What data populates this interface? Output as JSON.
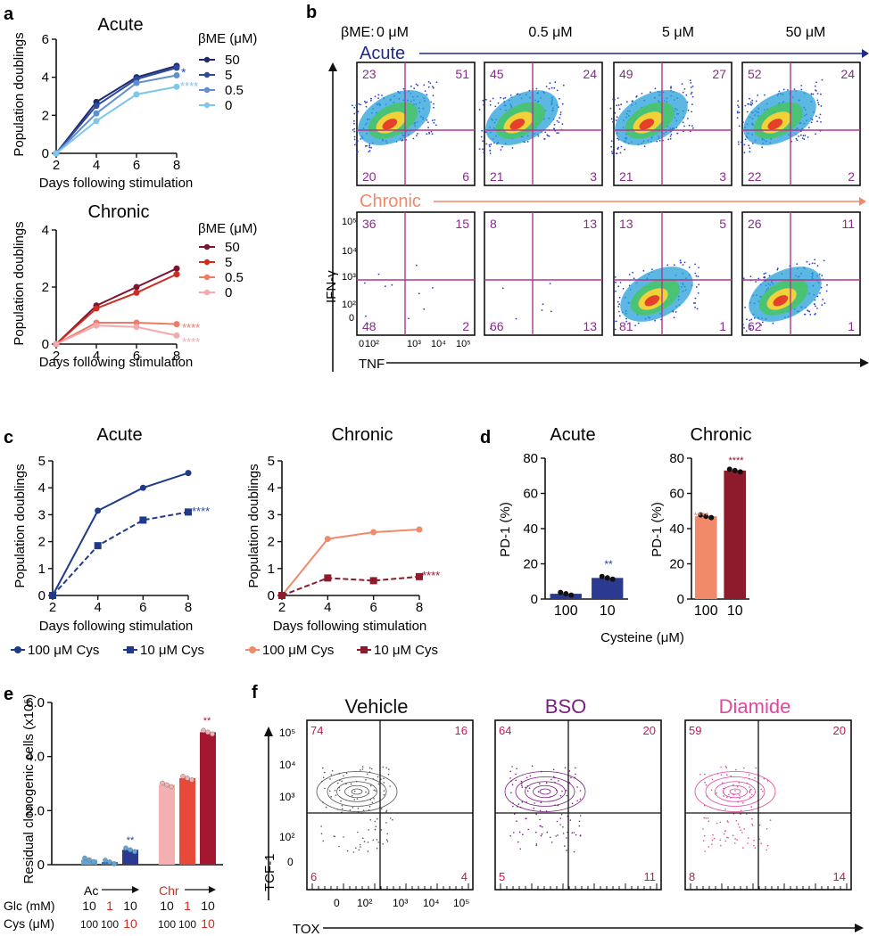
{
  "panels": {
    "a": "a",
    "b": "b",
    "c": "c",
    "d": "d",
    "e": "e",
    "f": "f"
  },
  "panel_a": {
    "acute_title": "Acute",
    "chronic_title": "Chronic",
    "ylabel": "Population doublings",
    "xlabel": "Days following stimulation",
    "legend_title": "βME (μM)",
    "legend_items": [
      "50",
      "5",
      "0.5",
      "0"
    ],
    "acute_colors": [
      "#1f2a6b",
      "#2b4aa0",
      "#5f8fd0",
      "#7fc6ea"
    ],
    "chronic_colors": [
      "#7b1530",
      "#d12a1f",
      "#ee7a6a",
      "#f5a9ae"
    ],
    "acute_sig": [
      "*",
      "****"
    ],
    "chronic_sig": [
      "****",
      "****"
    ]
  },
  "panel_b": {
    "header_label": "βME:",
    "concentrations": [
      "0 μM",
      "0.5 μM",
      "5 μM",
      "50 μM"
    ],
    "acute_label": "Acute",
    "chronic_label": "Chronic",
    "acute_color": "#1f2a8a",
    "chronic_color": "#f08a6a",
    "acute_quadrants": [
      [
        "23",
        "51",
        "20",
        "6"
      ],
      [
        "45",
        "24",
        "21",
        "3"
      ],
      [
        "49",
        "27",
        "21",
        "3"
      ],
      [
        "52",
        "24",
        "22",
        "2"
      ]
    ],
    "chronic_quadrants": [
      [
        "36",
        "15",
        "48",
        "2"
      ],
      [
        "8",
        "13",
        "66",
        "13"
      ],
      [
        "13",
        "5",
        "81",
        "1"
      ],
      [
        "26",
        "11",
        "62",
        "1"
      ]
    ],
    "y_axis_label": "IFN-γ",
    "x_axis_label": "TNF",
    "y_ticks": [
      "10⁵",
      "10⁴",
      "10³",
      "10²",
      "0"
    ],
    "x_ticks": [
      "0",
      "10²",
      "10³",
      "10⁴",
      "10⁵"
    ]
  },
  "panel_c": {
    "acute_title": "Acute",
    "chronic_title": "Chronic",
    "ylabel": "Population doublings",
    "xlabel": "Days following stimulation",
    "legend_acute": [
      "100 μM Cys",
      "10 μM Cys"
    ],
    "legend_chronic": [
      "100 μM Cys",
      "10 μM Cys"
    ],
    "sig": "****"
  },
  "panel_d": {
    "acute_title": "Acute",
    "chronic_title": "Chronic",
    "ylabel": "PD-1 (%)",
    "xlabel": "Cysteine (μM)",
    "categories": [
      "100",
      "10"
    ],
    "acute_sig": "**",
    "chronic_sig": "****"
  },
  "panel_e": {
    "ylabel": "Residual clonogenic cells (x10⁵)",
    "ac_label": "Ac",
    "chr_label": "Chr",
    "glc_label": "Glc (mM)",
    "cys_label": "Cys (μM)",
    "glc_values": [
      "10",
      "1",
      "10",
      "10",
      "1",
      "10"
    ],
    "cys_values": [
      "100",
      "100",
      "10",
      "100",
      "100",
      "10"
    ],
    "sig_ac": "**",
    "sig_chr": "**"
  },
  "panel_f": {
    "titles": [
      "Vehicle",
      "BSO",
      "Diamide"
    ],
    "title_colors": [
      "#111111",
      "#7a1f7e",
      "#e0479e"
    ],
    "quadrants": [
      [
        "74",
        "16",
        "6",
        "4"
      ],
      [
        "64",
        "20",
        "5",
        "11"
      ],
      [
        "59",
        "20",
        "8",
        "14"
      ]
    ],
    "y_axis_label": "TCF-1",
    "x_axis_label": "TOX",
    "y_ticks": [
      "10⁵",
      "10⁴",
      "10³",
      "10²",
      "0"
    ],
    "x_ticks": [
      "0",
      "10²",
      "10³",
      "10⁴",
      "10⁵"
    ]
  },
  "chart_data": [
    {
      "type": "line",
      "title": "Acute",
      "xlabel": "Days following stimulation",
      "ylabel": "Population doublings",
      "x": [
        2,
        4,
        6,
        8
      ],
      "xlim": [
        2,
        8
      ],
      "ylim": [
        0,
        6
      ],
      "yticks": [
        0,
        2,
        4,
        6
      ],
      "series": [
        {
          "name": "50",
          "values": [
            0,
            2.7,
            4.0,
            4.6
          ]
        },
        {
          "name": "5",
          "values": [
            0,
            2.5,
            3.9,
            4.5
          ]
        },
        {
          "name": "0.5",
          "values": [
            0,
            2.1,
            3.7,
            4.1
          ]
        },
        {
          "name": "0",
          "values": [
            0,
            1.7,
            3.1,
            3.5
          ]
        }
      ]
    },
    {
      "type": "line",
      "title": "Chronic",
      "xlabel": "Days following stimulation",
      "ylabel": "Population doublings",
      "x": [
        2,
        4,
        6,
        8
      ],
      "xlim": [
        2,
        8
      ],
      "ylim": [
        0,
        4
      ],
      "yticks": [
        0,
        2,
        4
      ],
      "series": [
        {
          "name": "50",
          "values": [
            0,
            1.35,
            2.0,
            2.65
          ]
        },
        {
          "name": "5",
          "values": [
            0,
            1.25,
            1.8,
            2.45
          ]
        },
        {
          "name": "0.5",
          "values": [
            0,
            0.75,
            0.75,
            0.7
          ]
        },
        {
          "name": "0",
          "values": [
            0,
            0.65,
            0.6,
            0.3
          ]
        }
      ]
    },
    {
      "type": "line",
      "title": "Acute",
      "xlabel": "Days following stimulation",
      "ylabel": "Population doublings",
      "x": [
        2,
        4,
        6,
        8
      ],
      "xlim": [
        2,
        8
      ],
      "ylim": [
        0,
        5
      ],
      "yticks": [
        0,
        1,
        2,
        3,
        4,
        5
      ],
      "series": [
        {
          "name": "100 μM Cys",
          "values": [
            0,
            3.15,
            4.0,
            4.55
          ]
        },
        {
          "name": "10 μM Cys",
          "values": [
            0,
            1.85,
            2.8,
            3.1
          ]
        }
      ]
    },
    {
      "type": "line",
      "title": "Chronic",
      "xlabel": "Days following stimulation",
      "ylabel": "Population doublings",
      "x": [
        2,
        4,
        6,
        8
      ],
      "xlim": [
        2,
        8
      ],
      "ylim": [
        0,
        5
      ],
      "yticks": [
        0,
        1,
        2,
        3,
        4,
        5
      ],
      "series": [
        {
          "name": "100 μM Cys",
          "values": [
            0,
            2.1,
            2.35,
            2.45
          ]
        },
        {
          "name": "10 μM Cys",
          "values": [
            0,
            0.65,
            0.55,
            0.7
          ]
        }
      ]
    },
    {
      "type": "bar",
      "title": "Acute",
      "xlabel": "Cysteine (μM)",
      "ylabel": "PD-1 (%)",
      "categories": [
        "100",
        "10"
      ],
      "values": [
        3,
        12
      ],
      "ylim": [
        0,
        80
      ],
      "yticks": [
        0,
        20,
        40,
        60,
        80
      ]
    },
    {
      "type": "bar",
      "title": "Chronic",
      "xlabel": "Cysteine (μM)",
      "ylabel": "PD-1 (%)",
      "categories": [
        "100",
        "10"
      ],
      "values": [
        47,
        73
      ],
      "ylim": [
        0,
        80
      ],
      "yticks": [
        0,
        20,
        40,
        60,
        80
      ]
    },
    {
      "type": "bar",
      "title": "",
      "xlabel": "",
      "ylabel": "Residual clonogenic cells (x10⁵)",
      "categories": [
        "Ac 10/100",
        "Ac 1/100",
        "Ac 10/10",
        "Chr 10/100",
        "Chr 1/100",
        "Chr 10/10"
      ],
      "values": [
        0.18,
        0.1,
        0.55,
        2.95,
        3.2,
        4.9
      ],
      "ylim": [
        0,
        6
      ],
      "yticks": [
        "0",
        "2.0",
        "4.0",
        "6.0"
      ]
    }
  ]
}
